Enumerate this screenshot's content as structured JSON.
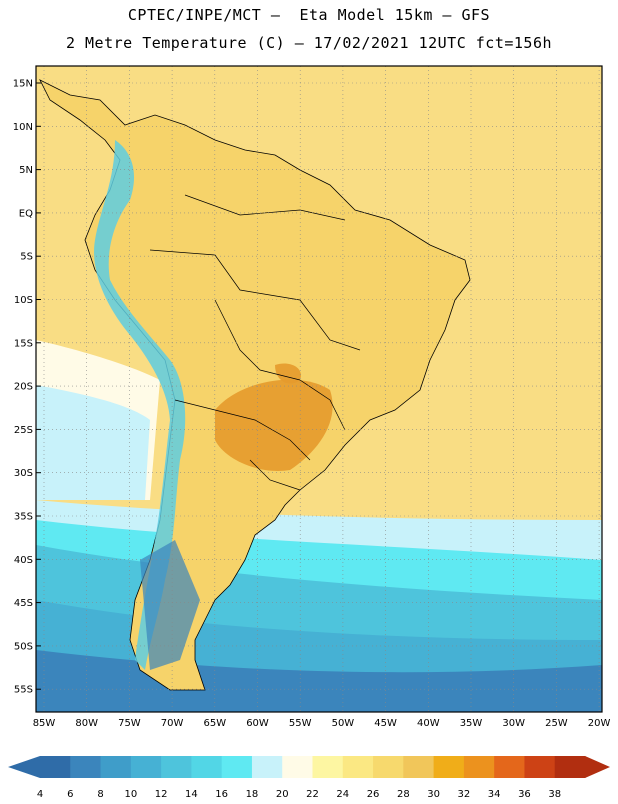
{
  "header": {
    "line1": "CPTEC/INPE/MCT –  Eta Model 15km – GFS",
    "line2": "2 Metre Temperature (C) – 17/02/2021 12UTC fct=156h"
  },
  "map": {
    "lat_labels": [
      "15N",
      "10N",
      "5N",
      "EQ",
      "5S",
      "10S",
      "15S",
      "20S",
      "25S",
      "30S",
      "35S",
      "40S",
      "45S",
      "50S",
      "55S"
    ],
    "lon_labels": [
      "85W",
      "80W",
      "75W",
      "70W",
      "65W",
      "60W",
      "55W",
      "50W",
      "45W",
      "40W",
      "35W",
      "30W",
      "25W",
      "20W"
    ],
    "colors": {
      "land_warm": "#f6d36a",
      "ocean_tropical": "#f9dd84",
      "ocean_south": "#48c3dc",
      "ocean_far_south": "#3f87c0",
      "hot_core": "#e69a2c",
      "andes": "#5ecde0",
      "border": "#000000"
    }
  },
  "legend": {
    "labels": [
      "4",
      "6",
      "8",
      "10",
      "12",
      "14",
      "16",
      "18",
      "20",
      "22",
      "24",
      "26",
      "28",
      "30",
      "32",
      "34",
      "36",
      "38"
    ],
    "colors": [
      "#2f6ca8",
      "#3b85bc",
      "#3f9dc9",
      "#46b1d4",
      "#4ec4dc",
      "#52d6e6",
      "#5fe9f2",
      "#c8f2fa",
      "#fffbe7",
      "#fdf6a2",
      "#fbe883",
      "#f7d96d",
      "#f1c65a",
      "#f0ad19",
      "#ec921e",
      "#e4671b",
      "#cd4215",
      "#b12e10"
    ]
  }
}
